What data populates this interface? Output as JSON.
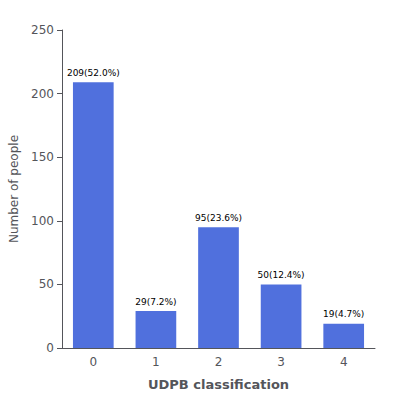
{
  "chart_data": {
    "type": "bar",
    "categories": [
      "0",
      "1",
      "2",
      "3",
      "4"
    ],
    "values": [
      209,
      29,
      95,
      50,
      19
    ],
    "value_labels": [
      "209(52.0%)",
      "29(7.2%)",
      "95(23.6%)",
      "50(12.4%)",
      "19(4.7%)"
    ],
    "data_labels": true,
    "xlabel": "UDPB classification",
    "ylabel": "Number of people",
    "ylim": [
      0,
      250
    ],
    "yticks": [
      0,
      50,
      100,
      150,
      200,
      250
    ],
    "grid": false
  }
}
